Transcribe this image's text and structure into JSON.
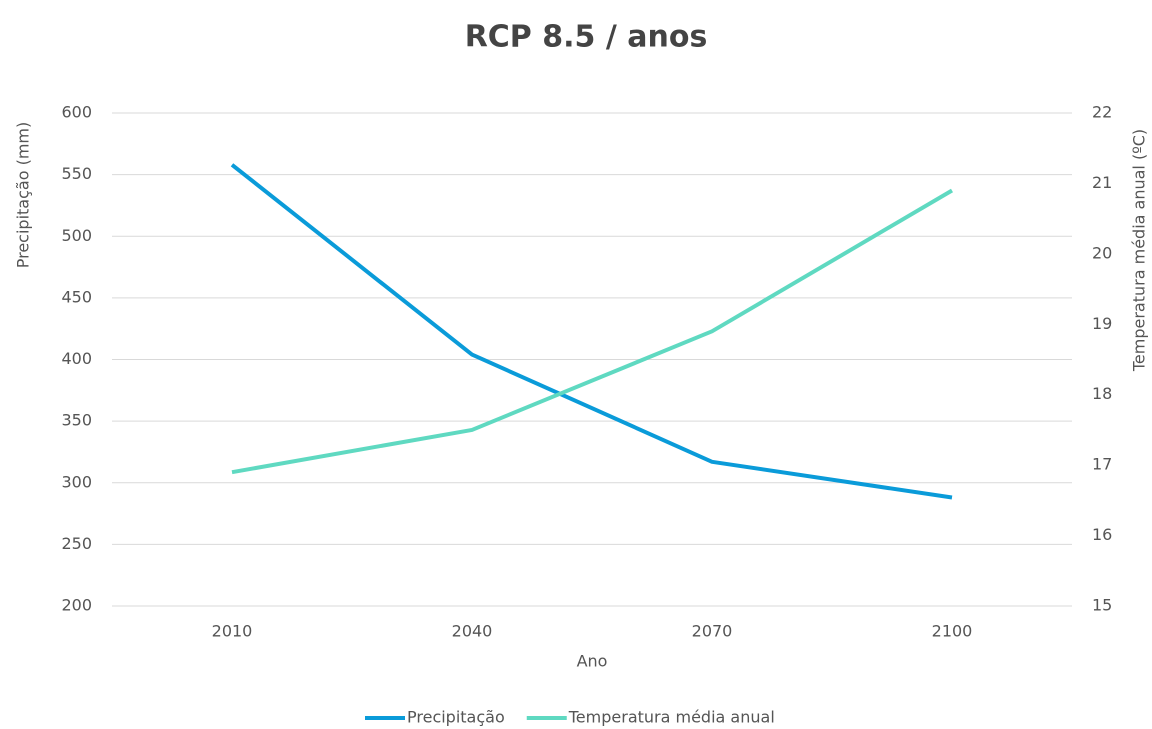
{
  "chart_data": {
    "type": "line",
    "title": "RCP 8.5 / anos",
    "xlabel": "Ano",
    "ylabel": "Precipitação (mm)",
    "y2label": "Temperatura média anual (ºC)",
    "categories": [
      "2010",
      "2040",
      "2070",
      "2100"
    ],
    "series": [
      {
        "name": "Precipitação",
        "color": "#0a9bd9",
        "values": [
          558,
          404,
          317,
          288
        ]
      },
      {
        "name": "Temperatura média anual",
        "color": "#5fd9c1",
        "axis": "y2",
        "values": [
          16.9,
          17.5,
          18.9,
          20.9
        ]
      }
    ],
    "ylim": [
      200,
      600
    ],
    "yticks": [
      200,
      250,
      300,
      350,
      400,
      450,
      500,
      550,
      600
    ],
    "y2lim": [
      15,
      22
    ],
    "y2ticks": [
      15,
      16,
      17,
      18,
      19,
      20,
      21,
      22
    ],
    "grid": true,
    "legend": "bottom"
  }
}
